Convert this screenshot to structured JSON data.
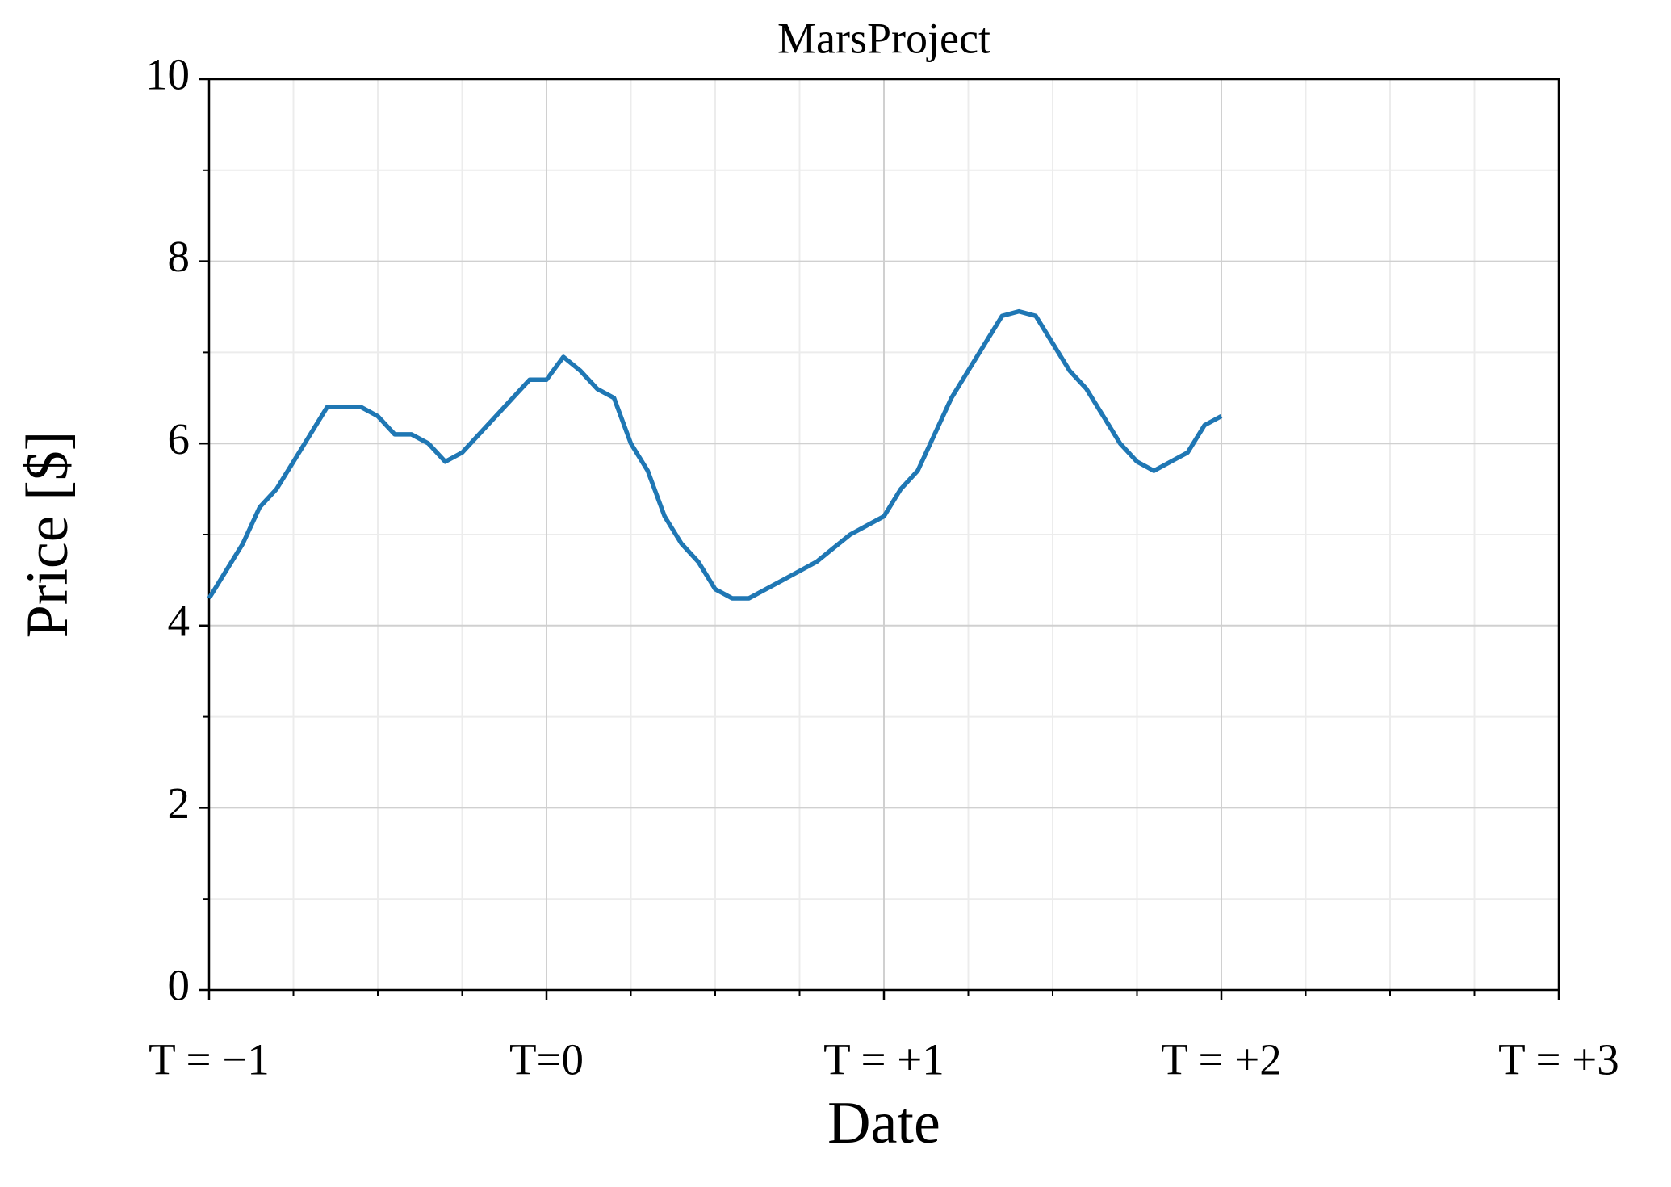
{
  "chart_data": {
    "type": "line",
    "title": "MarsProject",
    "xlabel": "Date",
    "ylabel": "Price [$]",
    "x": [
      -1,
      -0.95,
      -0.9,
      -0.85,
      -0.8,
      -0.75,
      -0.7,
      -0.65,
      -0.6,
      -0.55,
      -0.5,
      -0.45,
      -0.4,
      -0.35,
      -0.3,
      -0.25,
      -0.2,
      -0.15,
      -0.1,
      -0.05,
      0,
      0.05,
      0.1,
      0.15,
      0.2,
      0.25,
      0.3,
      0.35,
      0.4,
      0.45,
      0.5,
      0.55,
      0.6,
      0.65,
      0.7,
      0.75,
      0.8,
      0.85,
      0.9,
      0.95,
      1,
      1.05,
      1.1,
      1.15,
      1.2,
      1.25,
      1.3,
      1.35,
      1.4,
      1.45,
      1.5,
      1.55,
      1.6,
      1.65,
      1.7,
      1.75,
      1.8,
      1.85,
      1.9,
      1.95,
      2
    ],
    "series": [
      {
        "name": "MarsProject",
        "color": "#1f77b4",
        "values": [
          4.3,
          4.6,
          4.9,
          5.3,
          5.5,
          5.8,
          6.1,
          6.4,
          6.4,
          6.4,
          6.3,
          6.1,
          6.1,
          6.0,
          5.8,
          5.9,
          6.1,
          6.3,
          6.5,
          6.7,
          6.7,
          6.95,
          6.8,
          6.6,
          6.5,
          6.0,
          5.7,
          5.2,
          4.9,
          4.7,
          4.4,
          4.3,
          4.3,
          4.4,
          4.5,
          4.6,
          4.7,
          4.85,
          5.0,
          5.1,
          5.2,
          5.5,
          5.7,
          6.1,
          6.5,
          6.8,
          7.1,
          7.4,
          7.45,
          7.4,
          7.1,
          6.8,
          6.6,
          6.3,
          6.0,
          5.8,
          5.7,
          5.8,
          5.9,
          6.2,
          6.3
        ]
      }
    ],
    "xlim": [
      -1,
      3
    ],
    "ylim": [
      0,
      10
    ],
    "xticks": [
      {
        "value": -1,
        "label": "T = −1"
      },
      {
        "value": 0,
        "label": "T=0"
      },
      {
        "value": 1,
        "label": "T = +1"
      },
      {
        "value": 2,
        "label": "T = +2"
      },
      {
        "value": 3,
        "label": "T = +3"
      }
    ],
    "xminorticks": [
      -0.75,
      -0.5,
      -0.25,
      0.25,
      0.5,
      0.75,
      1.25,
      1.5,
      1.75,
      2.25,
      2.5,
      2.75
    ],
    "yticks": [
      0,
      2,
      4,
      6,
      8,
      10
    ],
    "yminorticks": [
      1,
      3,
      5,
      7,
      9
    ],
    "grid": true
  }
}
